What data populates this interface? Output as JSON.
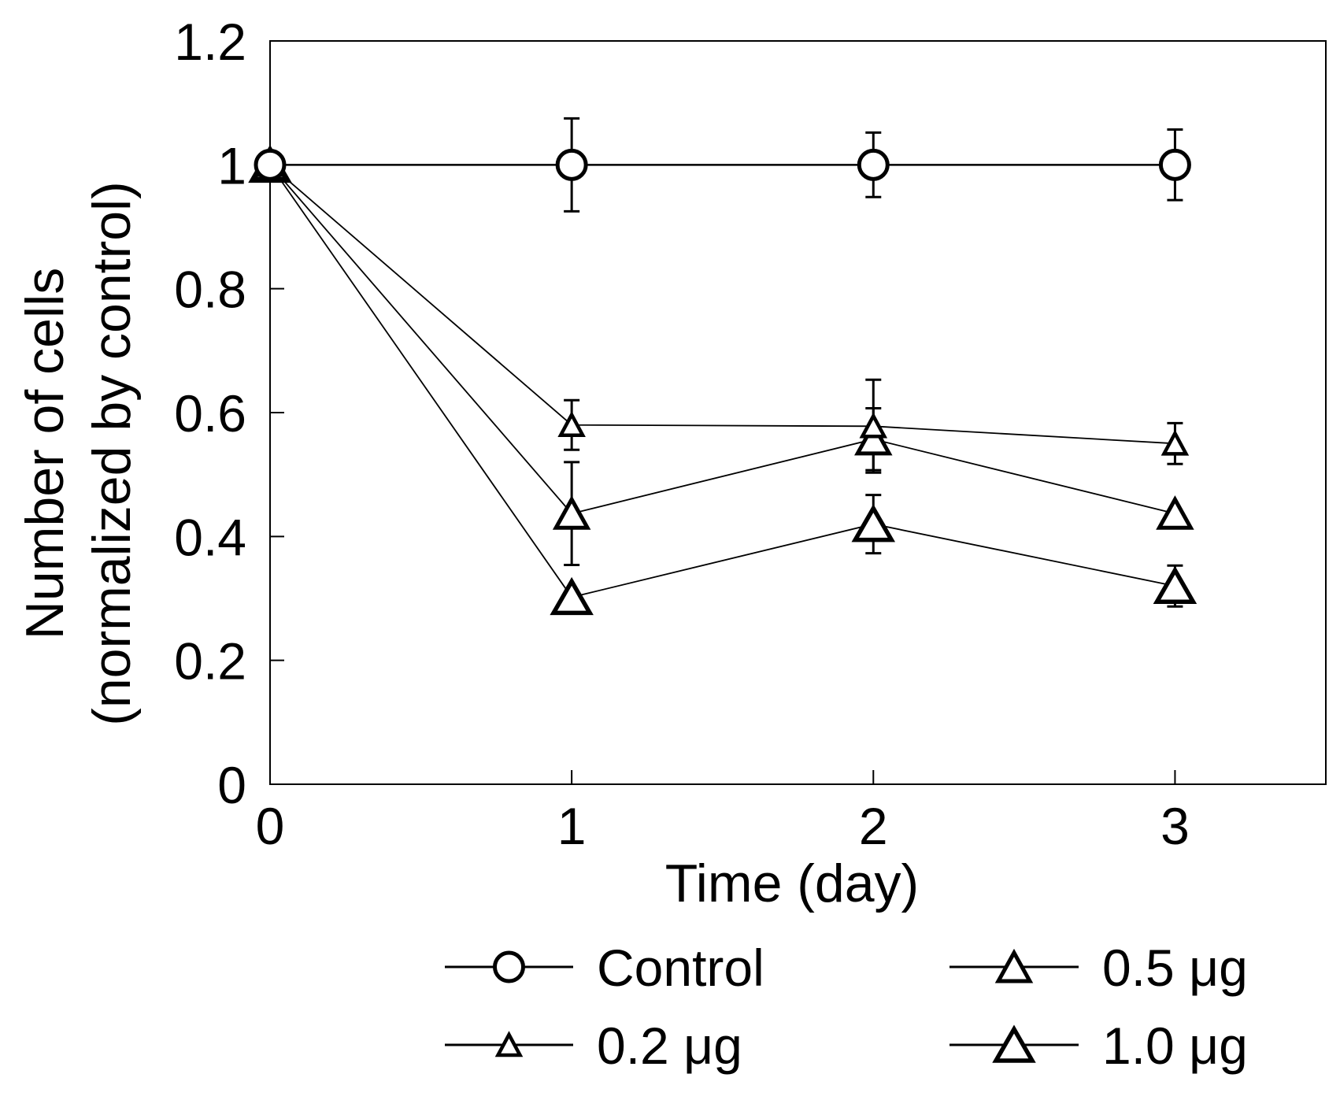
{
  "chart_data": {
    "type": "line",
    "title": "",
    "xlabel": "Time (day)",
    "ylabel_line1": "Number of cells",
    "ylabel_line2": "(normalized by control)",
    "xlim": [
      0,
      3.5
    ],
    "ylim": [
      0,
      1.2
    ],
    "x_ticks": [
      0,
      1,
      2,
      3
    ],
    "x_tick_labels": [
      "0",
      "1",
      "2",
      "3"
    ],
    "y_ticks": [
      0,
      0.2,
      0.4,
      0.6,
      0.8,
      1.0,
      1.2
    ],
    "y_tick_labels": [
      "0",
      "0.2",
      "0.4",
      "0.6",
      "0.8",
      "1",
      "1.2"
    ],
    "grid": false,
    "legend_position": "bottom",
    "x": [
      0,
      1,
      2,
      3
    ],
    "series": [
      {
        "name": "Control",
        "marker": "circle",
        "values": [
          1.0,
          1.0,
          1.0,
          1.0
        ],
        "errors": [
          0,
          0.075,
          0.052,
          0.057
        ]
      },
      {
        "name": "0.2 μg",
        "marker": "triangle-small",
        "values": [
          1.0,
          0.58,
          0.578,
          0.55
        ],
        "errors": [
          0,
          0.04,
          0.075,
          0.033
        ]
      },
      {
        "name": "0.5 μg",
        "marker": "triangle-medium",
        "values": [
          1.0,
          0.437,
          0.557,
          0.437
        ],
        "errors": [
          0,
          0.083,
          0.05,
          0
        ]
      },
      {
        "name": "1.0 μg",
        "marker": "triangle-large",
        "values": [
          1.0,
          0.302,
          0.42,
          0.32
        ],
        "errors": [
          0,
          0,
          0.047,
          0.033
        ]
      }
    ],
    "legend": [
      {
        "label": "Control",
        "marker": "circle"
      },
      {
        "label": "0.5 μg",
        "marker": "triangle-medium"
      },
      {
        "label": "0.2 μg",
        "marker": "triangle-small"
      },
      {
        "label": "1.0 μg",
        "marker": "triangle-large"
      }
    ]
  }
}
